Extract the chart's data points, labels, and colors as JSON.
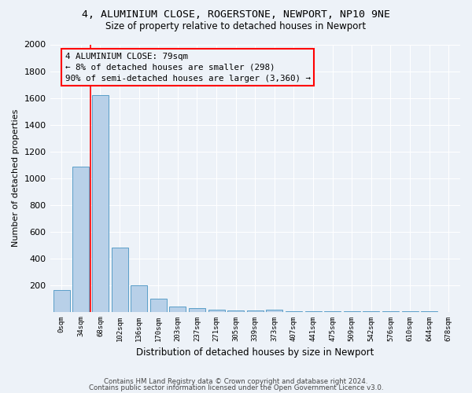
{
  "title1": "4, ALUMINIUM CLOSE, ROGERSTONE, NEWPORT, NP10 9NE",
  "title2": "Size of property relative to detached houses in Newport",
  "xlabel": "Distribution of detached houses by size in Newport",
  "ylabel": "Number of detached properties",
  "bar_color": "#b8d0e8",
  "bar_edge_color": "#5a9ec8",
  "background_color": "#edf2f8",
  "grid_color": "#ffffff",
  "categories": [
    "0sqm",
    "34sqm",
    "68sqm",
    "102sqm",
    "136sqm",
    "170sqm",
    "203sqm",
    "237sqm",
    "271sqm",
    "305sqm",
    "339sqm",
    "373sqm",
    "407sqm",
    "441sqm",
    "475sqm",
    "509sqm",
    "542sqm",
    "576sqm",
    "610sqm",
    "644sqm",
    "678sqm"
  ],
  "values": [
    165,
    1085,
    1620,
    480,
    200,
    100,
    40,
    25,
    15,
    10,
    10,
    15,
    5,
    5,
    5,
    5,
    5,
    5,
    5,
    5,
    0
  ],
  "ylim": [
    0,
    2000
  ],
  "yticks": [
    0,
    200,
    400,
    600,
    800,
    1000,
    1200,
    1400,
    1600,
    1800,
    2000
  ],
  "red_line_x": 1.5,
  "annotation_title": "4 ALUMINIUM CLOSE: 79sqm",
  "annotation_line1": "← 8% of detached houses are smaller (298)",
  "annotation_line2": "90% of semi-detached houses are larger (3,360) →",
  "footnote1": "Contains HM Land Registry data © Crown copyright and database right 2024.",
  "footnote2": "Contains public sector information licensed under the Open Government Licence v3.0."
}
